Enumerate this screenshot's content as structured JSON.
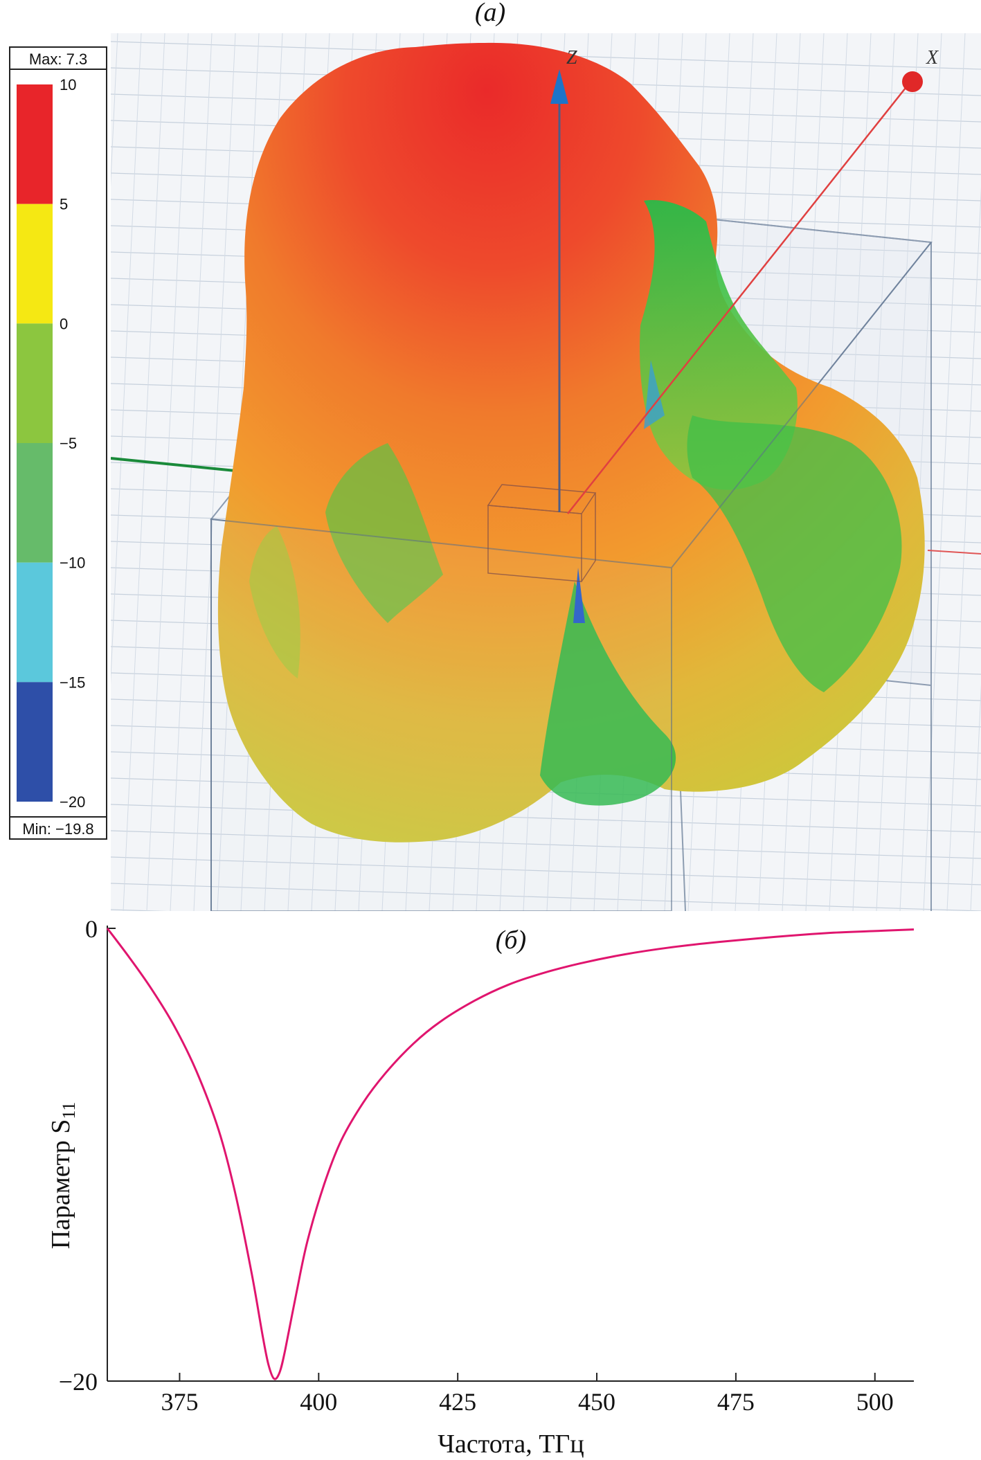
{
  "panel_a": {
    "label": "(a)",
    "legend": {
      "max_label": "Max: 7.3",
      "min_label": "Min: −19.8",
      "max_value": 7.3,
      "min_value": -19.8,
      "ticks": [
        "10",
        "5",
        "0",
        "−5",
        "−10",
        "−15",
        "−20"
      ],
      "bands": [
        {
          "from": 5,
          "to": 10,
          "color": "#e8252a"
        },
        {
          "from": 0,
          "to": 5,
          "color": "#f5e813"
        },
        {
          "from": -5,
          "to": 0,
          "color": "#8cc63f"
        },
        {
          "from": -10,
          "to": -5,
          "color": "#66bb6a"
        },
        {
          "from": -15,
          "to": -10,
          "color": "#5bc8dc"
        },
        {
          "from": -20,
          "to": -15,
          "color": "#2e4fa8"
        }
      ]
    },
    "axes": {
      "z_label": "Z",
      "x_label": "X"
    }
  },
  "panel_b": {
    "label": "(б)"
  },
  "chart_data": {
    "type": "line",
    "title": "",
    "xlabel": "Частота, ТГц",
    "ylabel": "Параметр S",
    "ylabel_subscript": "11",
    "xlim": [
      362,
      507
    ],
    "ylim": [
      -20,
      0
    ],
    "xticks": [
      375,
      400,
      425,
      450,
      475,
      500
    ],
    "yticks": [
      -20,
      0
    ],
    "grid": false,
    "series": [
      {
        "color": "#e0156e",
        "x": [
          362,
          366,
          370,
          374,
          378,
          382,
          385,
          388,
          390,
          391,
          392,
          393,
          394,
          396,
          398,
          401,
          404,
          408,
          412,
          417,
          422,
          428,
          434,
          440,
          447,
          455,
          463,
          472,
          482,
          492,
          500,
          507
        ],
        "y": [
          0,
          -1.3,
          -2.7,
          -4.3,
          -6.3,
          -8.9,
          -11.7,
          -15.3,
          -18.1,
          -19.3,
          -19.9,
          -19.6,
          -18.6,
          -16.1,
          -13.8,
          -11.3,
          -9.4,
          -7.7,
          -6.4,
          -5.1,
          -4.1,
          -3.2,
          -2.5,
          -2.0,
          -1.55,
          -1.15,
          -0.85,
          -0.6,
          -0.38,
          -0.2,
          -0.12,
          -0.05
        ]
      }
    ]
  }
}
